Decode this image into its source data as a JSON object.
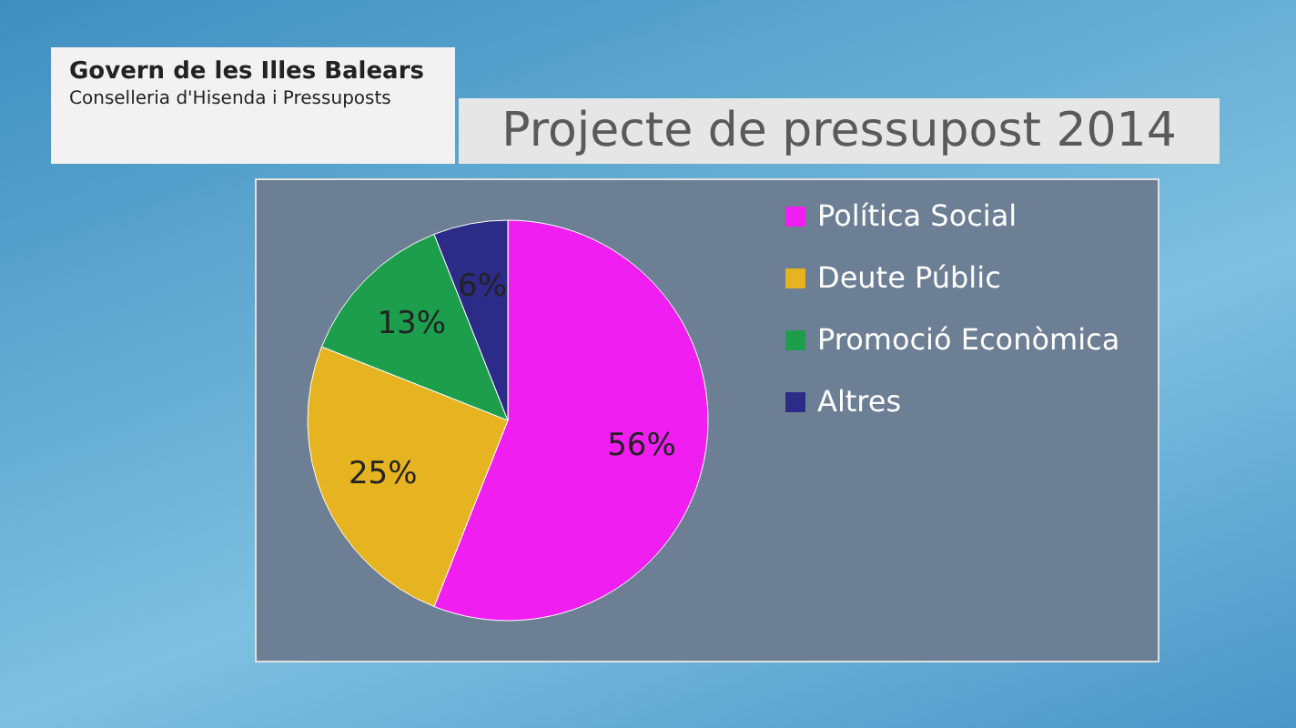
{
  "chart_data": {
    "type": "pie",
    "title": "Projecte de pressupost 2014",
    "annotations": [
      "Govern de les Illes Balears",
      "Conselleria d'Hisenda i Pressuposts"
    ],
    "categories": [
      "Política Social",
      "Deute Públic",
      "Promoció Econòmica",
      "Altres"
    ],
    "values": [
      56,
      25,
      13,
      6
    ],
    "colors": [
      "#f01ef0",
      "#e6b420",
      "#1c9e4c",
      "#2c2c88"
    ],
    "value_labels": [
      "56%",
      "25%",
      "13%",
      "6%"
    ],
    "legend": "right"
  }
}
